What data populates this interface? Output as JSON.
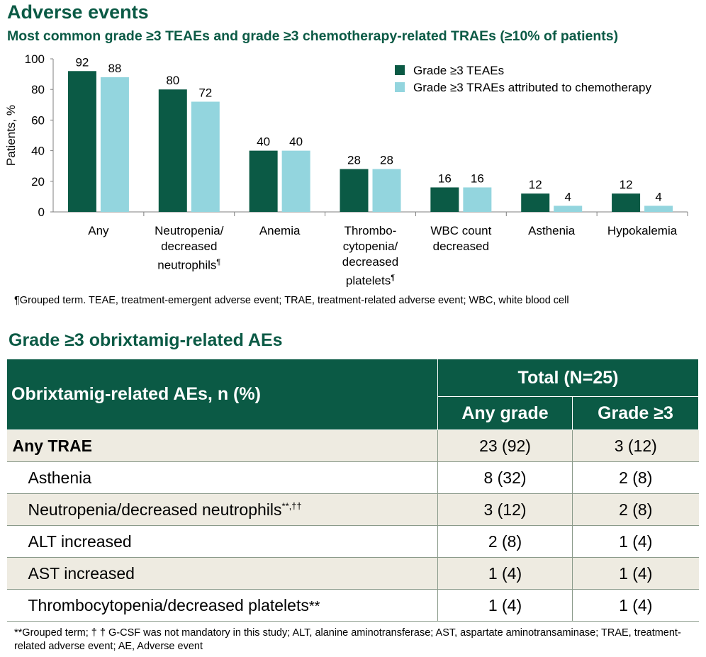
{
  "header": {
    "title": "Adverse events",
    "subtitle": "Most common grade ≥3 TEAEs and grade ≥3 chemotherapy-related TRAEs (≥10% of patients)"
  },
  "chart_data": {
    "type": "bar",
    "title": "Most common grade ≥3 TEAEs and grade ≥3 chemotherapy-related TRAEs (≥10% of patients)",
    "xlabel": "",
    "ylabel": "Patients, %",
    "ylim": [
      0,
      100
    ],
    "yticks": [
      0,
      20,
      40,
      60,
      80,
      100
    ],
    "categories": [
      {
        "lines": [
          "Any"
        ],
        "mark": ""
      },
      {
        "lines": [
          "Neutropenia/",
          "decreased",
          "neutrophils"
        ],
        "mark": "¶"
      },
      {
        "lines": [
          "Anemia"
        ],
        "mark": ""
      },
      {
        "lines": [
          "Thrombo-",
          "cytopenia/",
          "decreased",
          "platelets"
        ],
        "mark": "¶"
      },
      {
        "lines": [
          "WBC count",
          "decreased"
        ],
        "mark": ""
      },
      {
        "lines": [
          "Asthenia"
        ],
        "mark": ""
      },
      {
        "lines": [
          "Hypokalemia"
        ],
        "mark": ""
      }
    ],
    "series": [
      {
        "name": "Grade ≥3 TEAEs",
        "color": "#0b5a45",
        "values": [
          92,
          80,
          40,
          28,
          16,
          12,
          12
        ]
      },
      {
        "name": "Grade ≥3 TRAEs attributed to chemotherapy",
        "color": "#93d5de",
        "values": [
          88,
          72,
          40,
          28,
          16,
          4,
          4
        ]
      }
    ],
    "legend_position": "top-right"
  },
  "footnote_chart": "¶Grouped term. TEAE, treatment-emergent adverse event; TRAE, treatment-related adverse event; WBC, white blood cell",
  "table": {
    "section_title": "Grade ≥3 obrixtamig-related AEs",
    "header_label": "Obrixtamig-related AEs, n (%)",
    "total_label": "Total (N=25)",
    "col_any": "Any grade",
    "col_g3": "Grade ≥3",
    "rows": [
      {
        "label": "Any TRAE",
        "sup": "",
        "any": "23 (92)",
        "g3": "3 (12)"
      },
      {
        "label": "Asthenia",
        "sup": "",
        "any": "8 (32)",
        "g3": "2 (8)"
      },
      {
        "label": "Neutropenia/decreased neutrophils",
        "sup": "**,††",
        "any": "3 (12)",
        "g3": "2 (8)"
      },
      {
        "label": "ALT increased",
        "sup": "",
        "any": "2 (8)",
        "g3": "1 (4)"
      },
      {
        "label": "AST increased",
        "sup": "",
        "any": "1 (4)",
        "g3": "1 (4)"
      },
      {
        "label": "Thrombocytopenia/decreased platelets",
        "sup": "**",
        "any": "1 (4)",
        "g3": "1 (4)"
      }
    ]
  },
  "footnote_table": "**Grouped term;  † † G-CSF was not mandatory in this study; ALT, alanine aminotransferase; AST, aspartate aminotransaminase; TRAE, treatment-related adverse event; AE, Adverse event"
}
